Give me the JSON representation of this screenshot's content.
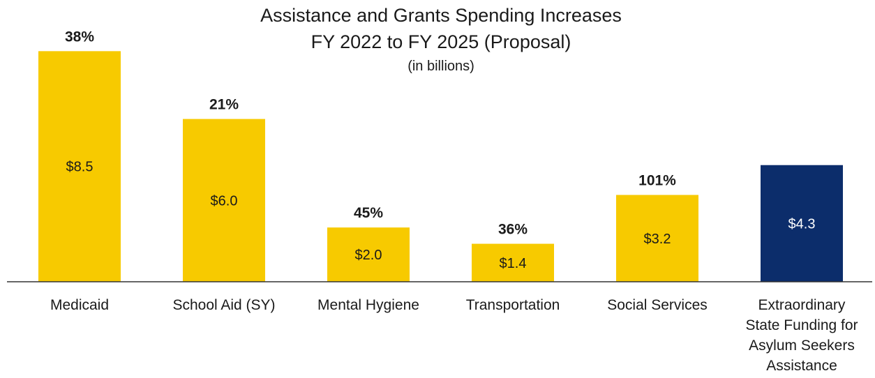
{
  "chart_data": {
    "type": "bar",
    "title": [
      "Assistance and Grants Spending Increases",
      "FY 2022 to FY 2025 (Proposal)"
    ],
    "subtitle": "(in billions)",
    "xlabel": "",
    "ylabel": "",
    "ylim": [
      0,
      9.0
    ],
    "grid": false,
    "legend": "none",
    "categories": [
      [
        "Medicaid"
      ],
      [
        "School Aid (SY)"
      ],
      [
        "Mental Hygiene"
      ],
      [
        "Transportation"
      ],
      [
        "Social Services"
      ],
      [
        "Extraordinary",
        "State Funding for",
        "Asylum Seekers",
        "Assistance"
      ]
    ],
    "values": [
      8.5,
      6.0,
      2.0,
      1.4,
      3.2,
      4.3
    ],
    "value_labels": [
      "$8.5",
      "$6.0",
      "$2.0",
      "$1.4",
      "$3.2",
      "$4.3"
    ],
    "percent_labels": [
      "38%",
      "21%",
      "45%",
      "36%",
      "101%",
      ""
    ],
    "colors": [
      "#f7ca00",
      "#f7ca00",
      "#f7ca00",
      "#f7ca00",
      "#f7ca00",
      "#0c2d6b"
    ],
    "label_colors": [
      "#1a1a1a",
      "#1a1a1a",
      "#1a1a1a",
      "#1a1a1a",
      "#1a1a1a",
      "#ffffff"
    ]
  }
}
